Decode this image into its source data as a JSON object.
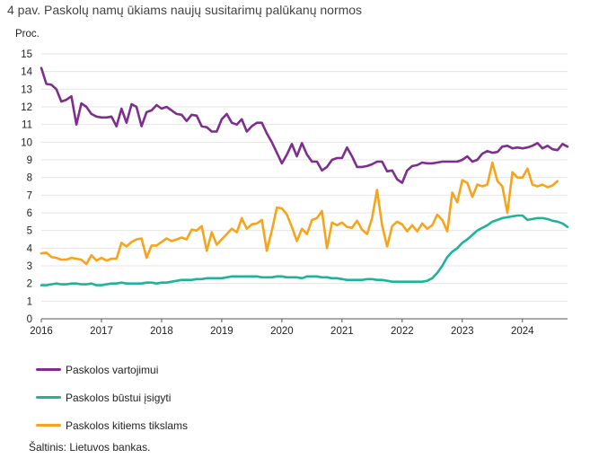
{
  "title": "4 pav. Paskolų namų ūkiams naujų susitarimų palūkanų normos",
  "source": "Šaltinis: Lietuvos bankas.",
  "chart_data": {
    "type": "line",
    "ylabel": "Proc.",
    "xlabel": "",
    "ylim": [
      0,
      15
    ],
    "y_ticks": [
      0,
      1,
      2,
      3,
      4,
      5,
      6,
      7,
      8,
      9,
      10,
      11,
      12,
      13,
      14,
      15
    ],
    "x_ticks": [
      "2016",
      "2017",
      "2018",
      "2019",
      "2020",
      "2021",
      "2022",
      "2023",
      "2024"
    ],
    "x_start": "2016-01",
    "x_end": "2024-08",
    "grid": "horizontal",
    "legend_position": "bottom",
    "series": [
      {
        "name": "Paskolos vartojimui",
        "color": "#7d2e8e",
        "values": [
          14.2,
          13.3,
          13.25,
          13.0,
          12.3,
          12.4,
          12.6,
          11.0,
          12.2,
          12.0,
          11.6,
          11.45,
          11.4,
          11.4,
          11.45,
          10.9,
          11.9,
          11.1,
          12.15,
          12.0,
          10.9,
          11.7,
          11.8,
          12.1,
          11.9,
          12.0,
          11.8,
          11.6,
          11.55,
          11.2,
          11.55,
          11.5,
          10.9,
          10.85,
          10.6,
          10.6,
          11.3,
          11.6,
          11.1,
          11.0,
          11.3,
          10.6,
          10.9,
          11.1,
          11.1,
          10.5,
          10.0,
          9.4,
          8.8,
          9.3,
          9.9,
          9.2,
          9.95,
          9.3,
          8.9,
          8.9,
          8.4,
          8.6,
          9.0,
          9.1,
          9.1,
          9.7,
          9.2,
          8.6,
          8.6,
          8.65,
          8.75,
          8.9,
          8.9,
          8.35,
          8.4,
          7.9,
          7.7,
          8.4,
          8.65,
          8.7,
          8.85,
          8.8,
          8.8,
          8.85,
          8.9,
          8.9,
          8.9,
          8.9,
          9.0,
          9.2,
          8.9,
          9.0,
          9.35,
          9.5,
          9.4,
          9.45,
          9.75,
          9.8,
          9.65,
          9.7,
          9.65,
          9.7,
          9.8,
          9.95,
          9.65,
          9.8,
          9.6,
          9.55,
          9.9,
          9.75
        ]
      },
      {
        "name": "Paskolos būstui įsigyti",
        "color": "#1fb39a",
        "values": [
          1.9,
          1.9,
          1.95,
          2.0,
          1.95,
          1.95,
          2.0,
          2.0,
          1.95,
          1.95,
          2.0,
          1.9,
          1.9,
          1.95,
          2.0,
          2.0,
          2.05,
          2.0,
          2.0,
          2.0,
          2.0,
          2.05,
          2.05,
          2.0,
          2.05,
          2.05,
          2.1,
          2.15,
          2.2,
          2.2,
          2.2,
          2.25,
          2.25,
          2.3,
          2.3,
          2.3,
          2.3,
          2.35,
          2.4,
          2.4,
          2.4,
          2.4,
          2.4,
          2.4,
          2.35,
          2.35,
          2.35,
          2.4,
          2.4,
          2.35,
          2.35,
          2.35,
          2.3,
          2.4,
          2.4,
          2.4,
          2.35,
          2.35,
          2.3,
          2.3,
          2.25,
          2.2,
          2.2,
          2.2,
          2.2,
          2.25,
          2.25,
          2.2,
          2.2,
          2.15,
          2.1,
          2.1,
          2.1,
          2.1,
          2.1,
          2.1,
          2.1,
          2.15,
          2.3,
          2.6,
          3.0,
          3.5,
          3.8,
          4.0,
          4.3,
          4.5,
          4.75,
          5.0,
          5.15,
          5.3,
          5.5,
          5.6,
          5.7,
          5.75,
          5.8,
          5.85,
          5.85,
          5.6,
          5.65,
          5.7,
          5.7,
          5.65,
          5.55,
          5.5,
          5.4,
          5.2
        ]
      },
      {
        "name": "Paskolos kitiems tikslams",
        "color": "#f7a41d",
        "values": [
          3.7,
          3.75,
          3.5,
          3.45,
          3.35,
          3.35,
          3.45,
          3.4,
          3.35,
          3.1,
          3.6,
          3.3,
          3.45,
          3.3,
          3.4,
          3.4,
          4.3,
          4.1,
          4.35,
          4.5,
          4.55,
          3.45,
          4.15,
          4.15,
          4.35,
          4.55,
          4.4,
          4.5,
          4.6,
          4.5,
          5.05,
          5.0,
          5.25,
          3.85,
          4.9,
          4.2,
          4.5,
          4.8,
          5.1,
          4.9,
          5.7,
          5.1,
          5.35,
          5.4,
          5.6,
          3.85,
          5.0,
          6.3,
          6.25,
          5.9,
          5.2,
          4.4,
          5.1,
          4.8,
          5.6,
          5.7,
          6.1,
          4.0,
          5.45,
          5.3,
          5.45,
          5.2,
          5.15,
          5.55,
          5.05,
          4.8,
          5.7,
          7.3,
          5.3,
          4.1,
          5.25,
          5.5,
          5.35,
          4.95,
          5.3,
          4.95,
          5.4,
          5.1,
          5.3,
          5.9,
          5.6,
          4.95,
          7.15,
          6.6,
          7.85,
          7.7,
          6.9,
          7.6,
          7.5,
          7.6,
          8.85,
          7.8,
          7.5,
          6.0,
          8.3,
          8.0,
          8.0,
          8.5,
          7.6,
          7.5,
          7.6,
          7.45,
          7.55,
          7.8
        ]
      }
    ]
  }
}
